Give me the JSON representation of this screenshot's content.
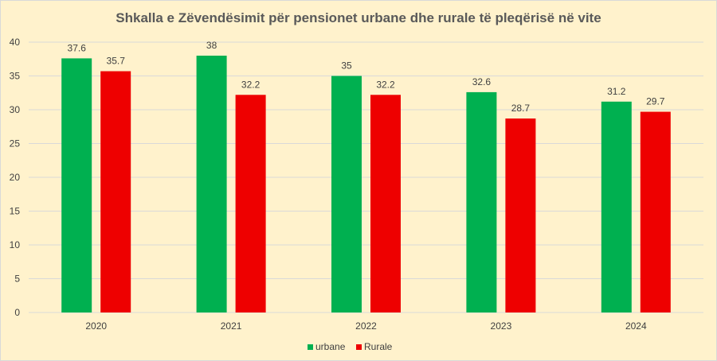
{
  "chart_data": {
    "type": "bar",
    "title": "Shkalla e Zëvendësimit për pensionet urbane dhe rurale të pleqërisë në vite",
    "categories": [
      "2020",
      "2021",
      "2022",
      "2023",
      "2024"
    ],
    "series": [
      {
        "name": "urbane",
        "values": [
          37.6,
          38,
          35,
          32.6,
          31.2
        ],
        "color": "#00b050"
      },
      {
        "name": "Rurale",
        "values": [
          35.7,
          32.2,
          32.2,
          28.7,
          29.7
        ],
        "color": "#ee0000"
      }
    ],
    "ylim": [
      0,
      40
    ],
    "yticks": [
      0,
      5,
      10,
      15,
      20,
      25,
      30,
      35,
      40
    ],
    "grid": true,
    "legend_position": "bottom",
    "background": "#fff2cc",
    "gridline_color": "#d9d9d9"
  }
}
